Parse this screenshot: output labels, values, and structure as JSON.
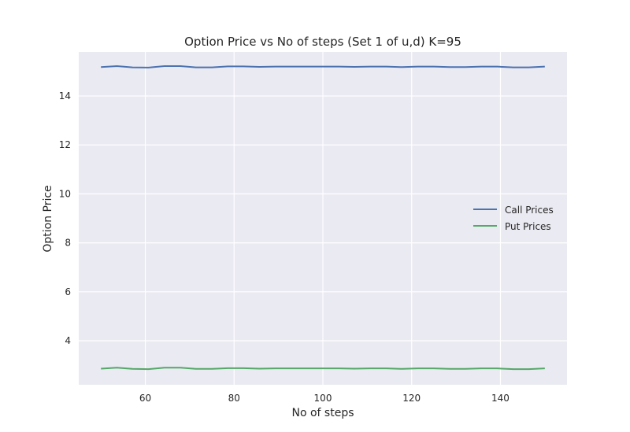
{
  "chart_data": {
    "type": "line",
    "title": "Option Price vs No of steps (Set 1 of u,d) K=95",
    "xlabel": "No of steps",
    "ylabel": "Option Price",
    "xlim": [
      45,
      155
    ],
    "ylim": [
      2.2,
      15.8
    ],
    "xticks": [
      60,
      80,
      100,
      120,
      140
    ],
    "yticks": [
      4,
      6,
      8,
      10,
      12,
      14
    ],
    "grid": true,
    "legend_position": "center-right",
    "x": [
      50,
      53.6,
      57.1,
      60.7,
      64.3,
      67.9,
      71.4,
      75,
      78.6,
      82.1,
      85.7,
      89.3,
      92.9,
      96.4,
      100,
      103.6,
      107.1,
      110.7,
      114.3,
      117.9,
      121.4,
      125,
      128.6,
      132.1,
      135.7,
      139.3,
      142.9,
      146.4,
      150
    ],
    "series": [
      {
        "name": "Call Prices",
        "color": "#4c72b0",
        "values": [
          15.18,
          15.22,
          15.17,
          15.16,
          15.22,
          15.22,
          15.17,
          15.17,
          15.21,
          15.21,
          15.19,
          15.2,
          15.2,
          15.2,
          15.2,
          15.2,
          15.19,
          15.2,
          15.2,
          15.18,
          15.2,
          15.2,
          15.18,
          15.18,
          15.2,
          15.2,
          15.17,
          15.17,
          15.2
        ]
      },
      {
        "name": "Put Prices",
        "color": "#55a868",
        "values": [
          2.86,
          2.9,
          2.85,
          2.84,
          2.9,
          2.9,
          2.85,
          2.85,
          2.88,
          2.88,
          2.86,
          2.87,
          2.87,
          2.87,
          2.87,
          2.87,
          2.86,
          2.87,
          2.87,
          2.85,
          2.87,
          2.87,
          2.85,
          2.85,
          2.87,
          2.87,
          2.84,
          2.84,
          2.87
        ]
      }
    ]
  }
}
